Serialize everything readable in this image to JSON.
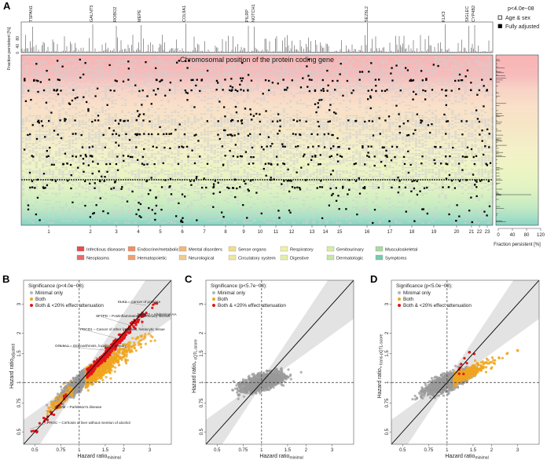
{
  "chart_data": [
    {
      "panel": "A",
      "type": "scatter",
      "title": "",
      "xlabel": "Chromosomal position of the protein coding gene",
      "top_ylabel": "Fraction persistent [%]",
      "top_yticks": [
        "0",
        "40",
        "80"
      ],
      "chromosomes": [
        "1",
        "2",
        "3",
        "4",
        "5",
        "6",
        "7",
        "8",
        "9",
        "10",
        "11",
        "12",
        "13",
        "14",
        "15",
        "16",
        "17",
        "18",
        "19",
        "20",
        "21",
        "22",
        "23"
      ],
      "genes": [
        {
          "name": "TSPAN1",
          "chrom": "1"
        },
        {
          "name": "GALNT5",
          "chrom": "2"
        },
        {
          "name": "ROBO2",
          "chrom": "3"
        },
        {
          "name": "MEPE",
          "chrom": "4"
        },
        {
          "name": "COL9A1",
          "chrom": "6"
        },
        {
          "name": "PILRP",
          "chrom": "9"
        },
        {
          "name": "NOTCH1",
          "chrom": "9"
        },
        {
          "name": "SEZ6L2",
          "chrom": "16"
        },
        {
          "name": "KLK3",
          "chrom": "19"
        },
        {
          "name": "SIGLEC",
          "chrom": "22"
        },
        {
          "name": "CYP4B2",
          "chrom": "22"
        }
      ],
      "legend": {
        "threshold": "p<4.0e−08",
        "items": [
          {
            "label": "Age & sex",
            "marker": "open-square"
          },
          {
            "label": "Fully adjusted",
            "marker": "filled-square"
          }
        ]
      },
      "side_xlabel": "Fraction persistent [%]",
      "side_xticks": [
        "0",
        "40",
        "80",
        "120"
      ],
      "categories": [
        {
          "label": "Infectious diseases",
          "color": "#e74c4c"
        },
        {
          "label": "Neoplasms",
          "color": "#ec6a6a"
        },
        {
          "label": "Endocrine/metabolic",
          "color": "#ee8f6a"
        },
        {
          "label": "Hematopoietic",
          "color": "#f0a070"
        },
        {
          "label": "Mental disorders",
          "color": "#f3b779"
        },
        {
          "label": "Neurological",
          "color": "#f4c98a"
        },
        {
          "label": "Sense organs",
          "color": "#f2dc8c"
        },
        {
          "label": "Circulatory system",
          "color": "#efe79a"
        },
        {
          "label": "Respiratory",
          "color": "#eef0a5"
        },
        {
          "label": "Digestive",
          "color": "#e4f0a5"
        },
        {
          "label": "Genitourinary",
          "color": "#d5eda5"
        },
        {
          "label": "Dermatologic",
          "color": "#c5e8a3"
        },
        {
          "label": "Musculoskeletal",
          "color": "#a9dba2"
        },
        {
          "label": "Symptoms",
          "color": "#78cab2"
        }
      ]
    },
    {
      "panel": "B",
      "type": "scatter",
      "legend_title": "Significance (p<4.0e−08):",
      "series": [
        {
          "name": "Minimal only",
          "color": "#b5b5b5"
        },
        {
          "name": "Both",
          "color": "#f0a51e"
        },
        {
          "name": "Both & <20% effect attenuation",
          "color": "#e3151a"
        }
      ],
      "xlabel": "Hazard ratio",
      "xlabel_sub": "minimal",
      "ylabel": "Hazard ratio",
      "ylabel_sub": "adjusted",
      "xticks": [
        "0.5",
        "0.75",
        "1",
        "1.5",
        "2",
        "3"
      ],
      "yticks": [
        "0.5",
        "0.75",
        "1",
        "1.5",
        "2",
        "3"
      ],
      "xlim": [
        0.42,
        4.2
      ],
      "ylim": [
        0.42,
        4.2
      ],
      "annotations": [
        {
          "text": "KLK3 – Cancer of prostate",
          "x": 3.0,
          "y": 3.05
        },
        {
          "text": "SFTPD – Postinflammatory pulmonary fibrosis",
          "x": 2.3,
          "y": 2.35
        },
        {
          "text": "MMP12 – Abdominal AA",
          "x": 3.4,
          "y": 2.2
        },
        {
          "text": "PDCD1 – Cancer of other lymphoid, histiocytic tissue",
          "x": 1.9,
          "y": 1.85
        },
        {
          "text": "COL9A1 – Osteoarthrosis, localized, primary",
          "x": 1.7,
          "y": 1.55
        },
        {
          "text": "ITGAV – Parkinson's disease",
          "x": 0.62,
          "y": 0.64
        },
        {
          "text": "PROC – Cirrhosis of liver without mention of alcohol",
          "x": 0.5,
          "y": 0.5
        }
      ]
    },
    {
      "panel": "C",
      "type": "scatter",
      "legend_title": "Significance (p<5.7e−08):",
      "series": [
        {
          "name": "Minimal only",
          "color": "#b5b5b5"
        },
        {
          "name": "Both",
          "color": "#f0a51e"
        },
        {
          "name": "Both & <20% effect attenuation",
          "color": "#e3151a"
        }
      ],
      "xlabel": "Hazard ratio",
      "xlabel_sub": "minimal",
      "ylabel": "Hazard ratio",
      "ylabel_sub": "+ cQTL-score",
      "xticks": [
        "0.5",
        "0.75",
        "1",
        "1.5",
        "2",
        "3"
      ],
      "yticks": [
        "0.5",
        "0.75",
        "1",
        "1.5",
        "2",
        "3"
      ],
      "xlim": [
        0.42,
        4.2
      ],
      "ylim": [
        0.42,
        4.2
      ]
    },
    {
      "panel": "D",
      "type": "scatter",
      "legend_title": "Significance (p<5.0e−08):",
      "series": [
        {
          "name": "Minimal only",
          "color": "#b5b5b5"
        },
        {
          "name": "Both",
          "color": "#f0a51e"
        },
        {
          "name": "Both & <20% effect attenuation",
          "color": "#e3151a"
        }
      ],
      "xlabel": "Hazard ratio",
      "xlabel_sub": "minimal",
      "ylabel": "Hazard ratio",
      "ylabel_sub": "+ trans-pQTL-score",
      "xticks": [
        "0.5",
        "0.75",
        "1",
        "1.5",
        "2",
        "3"
      ],
      "yticks": [
        "0.5",
        "0.75",
        "1",
        "1.5",
        "2",
        "3"
      ],
      "xlim": [
        0.42,
        4.2
      ],
      "ylim": [
        0.42,
        4.2
      ]
    }
  ]
}
